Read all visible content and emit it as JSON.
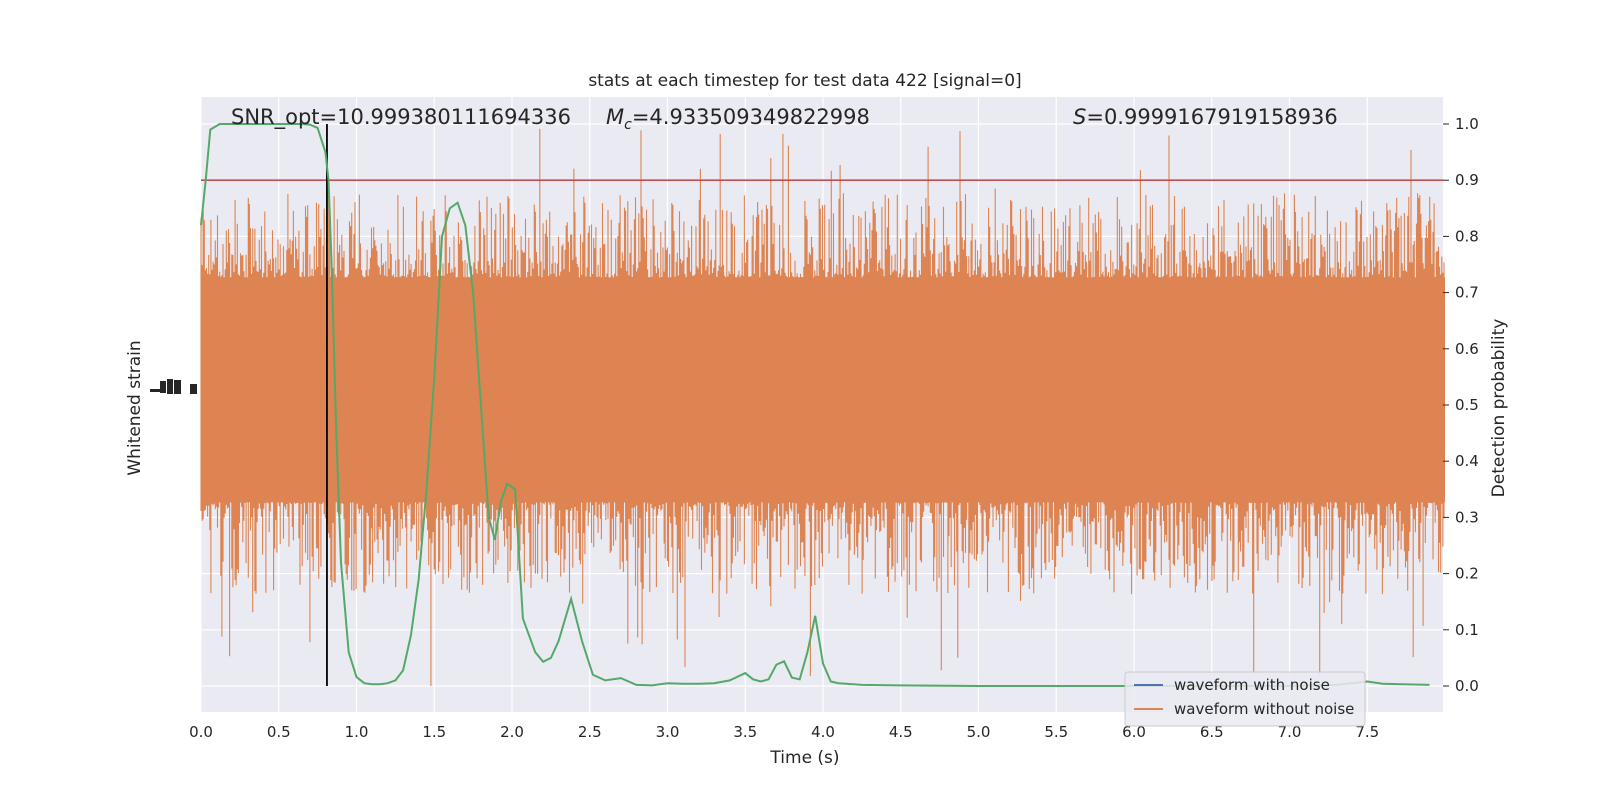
{
  "chart_data": {
    "type": "line",
    "title": "stats at each timestep for test data 422 [signal=0]",
    "xlabel": "Time (s)",
    "ylabel_left": "Whitened strain",
    "ylabel_right": "Detection probability",
    "xlim": [
      0.0,
      8.0
    ],
    "ylim_right": [
      -0.05,
      1.05
    ],
    "x_ticks": [
      "0.0",
      "0.5",
      "1.0",
      "1.5",
      "2.0",
      "2.5",
      "3.0",
      "3.5",
      "4.0",
      "4.5",
      "5.0",
      "5.5",
      "6.0",
      "6.5",
      "7.0",
      "7.5"
    ],
    "y_right_ticks": [
      "0.0",
      "0.1",
      "0.2",
      "0.3",
      "0.4",
      "0.5",
      "0.6",
      "0.7",
      "0.8",
      "0.9",
      "1.0"
    ],
    "grid": true,
    "legend_position": "bottom-right",
    "legend": [
      {
        "label": "waveform with noise",
        "color": "#4c72b0"
      },
      {
        "label": "waveform without noise",
        "color": "#dd8452"
      }
    ],
    "annotations": {
      "snr": "SNR_opt=10.999380111694336",
      "mc_symbol": "M",
      "mc_sub": "c",
      "mc_value": "=4.933509349822998",
      "s_symbol": "S",
      "s_value": "=0.9999167919158936"
    },
    "threshold": {
      "y": 0.9,
      "color": "#c44e52"
    },
    "marker_time": 0.81,
    "noise_series": {
      "name": "waveform without noise",
      "color": "#dd8452",
      "t_start": 0.0,
      "t_end": 8.0,
      "center": 0.527,
      "band_halfwidth": 0.2,
      "typical_halfwidth": 0.255,
      "spike_max_up": 1.0,
      "spike_max_down": 0.0
    },
    "probability_series": {
      "name": "Detection probability",
      "color": "#55a868",
      "t": [
        0.0,
        0.03,
        0.06,
        0.12,
        0.2,
        0.3,
        0.4,
        0.5,
        0.6,
        0.65,
        0.7,
        0.75,
        0.8,
        0.82,
        0.84,
        0.87,
        0.9,
        0.95,
        1.0,
        1.05,
        1.1,
        1.15,
        1.2,
        1.25,
        1.3,
        1.35,
        1.4,
        1.45,
        1.5,
        1.55,
        1.6,
        1.65,
        1.7,
        1.75,
        1.8,
        1.85,
        1.89,
        1.93,
        1.97,
        2.02,
        2.07,
        2.15,
        2.2,
        2.25,
        2.3,
        2.38,
        2.45,
        2.52,
        2.6,
        2.7,
        2.8,
        2.9,
        3.0,
        3.1,
        3.2,
        3.3,
        3.4,
        3.5,
        3.55,
        3.6,
        3.65,
        3.7,
        3.75,
        3.8,
        3.85,
        3.9,
        3.95,
        4.0,
        4.05,
        4.1,
        4.15,
        4.25,
        4.5,
        5.0,
        5.5,
        6.0,
        6.5,
        7.0,
        7.3,
        7.5,
        7.6,
        7.9
      ],
      "p": [
        0.82,
        0.9,
        0.99,
        1.0,
        1.0,
        1.0,
        1.0,
        1.0,
        1.0,
        1.0,
        0.999,
        0.993,
        0.95,
        0.9,
        0.75,
        0.45,
        0.22,
        0.06,
        0.016,
        0.005,
        0.003,
        0.003,
        0.005,
        0.01,
        0.028,
        0.09,
        0.19,
        0.35,
        0.55,
        0.8,
        0.85,
        0.86,
        0.82,
        0.7,
        0.5,
        0.3,
        0.26,
        0.33,
        0.36,
        0.35,
        0.12,
        0.06,
        0.043,
        0.05,
        0.08,
        0.155,
        0.08,
        0.02,
        0.01,
        0.014,
        0.002,
        0.001,
        0.005,
        0.004,
        0.004,
        0.005,
        0.01,
        0.023,
        0.012,
        0.008,
        0.012,
        0.038,
        0.044,
        0.015,
        0.012,
        0.06,
        0.125,
        0.04,
        0.008,
        0.005,
        0.004,
        0.002,
        0.001,
        0.0,
        0.0,
        0.0,
        0.0,
        0.0,
        0.002,
        0.008,
        0.004,
        0.002
      ]
    }
  }
}
